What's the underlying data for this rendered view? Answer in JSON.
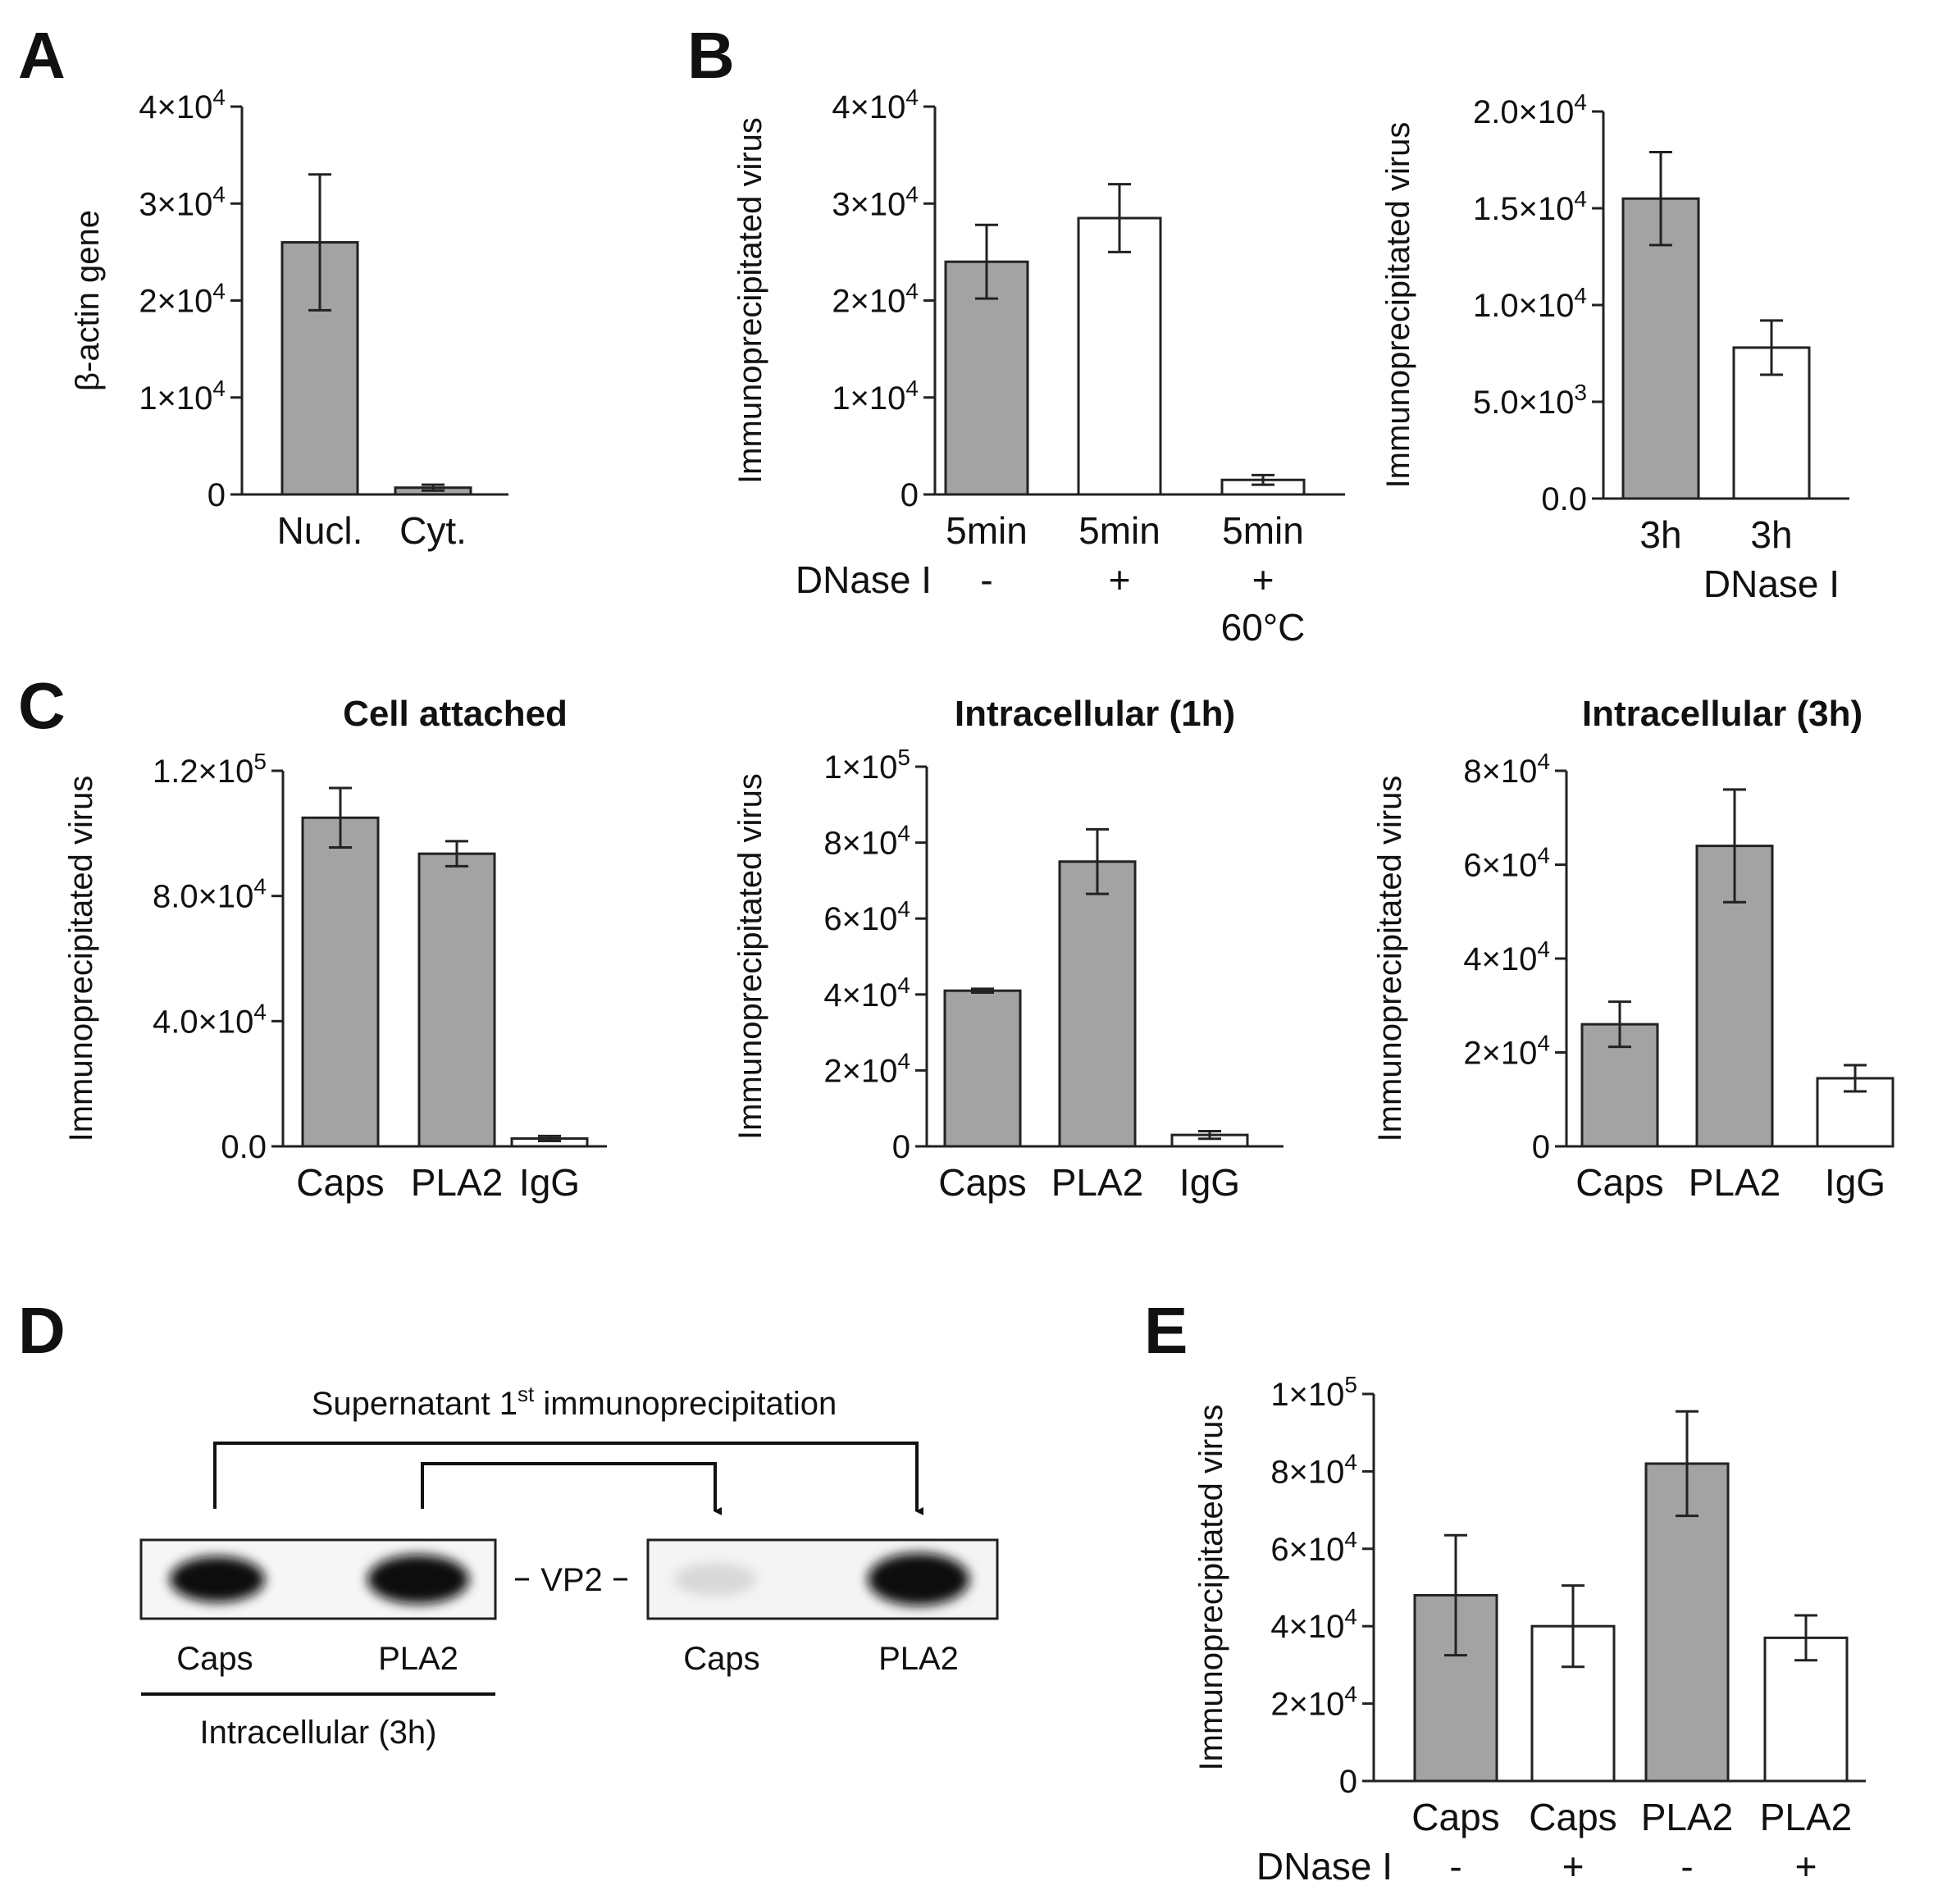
{
  "panels": {
    "A": {
      "letter": "A"
    },
    "B": {
      "letter": "B"
    },
    "C": {
      "letter": "C"
    },
    "D": {
      "letter": "D"
    },
    "E": {
      "letter": "E"
    }
  },
  "colors": {
    "gray_bar": "#a3a3a3",
    "white_bar": "#ffffff",
    "ink": "#222222"
  },
  "chart_data": [
    {
      "id": "A",
      "type": "bar",
      "title": "",
      "ylabel": "β-actin gene",
      "ylim": [
        0,
        40000
      ],
      "yticks": [
        {
          "v": 0,
          "label": "0"
        },
        {
          "v": 10000,
          "label": "1×10^4"
        },
        {
          "v": 20000,
          "label": "2×10^4"
        },
        {
          "v": 30000,
          "label": "3×10^4"
        },
        {
          "v": 40000,
          "label": "4×10^4"
        }
      ],
      "categories": [
        "Nucl.",
        "Cyt."
      ],
      "values": [
        26000,
        700
      ],
      "errors": [
        7000,
        300
      ],
      "fills": [
        "gray",
        "gray"
      ],
      "extra_rows": []
    },
    {
      "id": "B1",
      "type": "bar",
      "title": "",
      "ylabel": "Immunoprecipitated virus",
      "ylim": [
        0,
        40000
      ],
      "yticks": [
        {
          "v": 0,
          "label": "0"
        },
        {
          "v": 10000,
          "label": "1×10^4"
        },
        {
          "v": 20000,
          "label": "2×10^4"
        },
        {
          "v": 30000,
          "label": "3×10^4"
        },
        {
          "v": 40000,
          "label": "4×10^4"
        }
      ],
      "categories": [
        "5min",
        "5min",
        "5min"
      ],
      "values": [
        24000,
        28500,
        1500
      ],
      "errors": [
        3800,
        3500,
        500
      ],
      "fills": [
        "gray",
        "white",
        "white"
      ],
      "extra_rows": [
        {
          "label": "DNase I",
          "values": [
            "-",
            "+",
            "+"
          ]
        },
        {
          "label": "",
          "values": [
            "",
            "",
            "60°C"
          ]
        }
      ]
    },
    {
      "id": "B2",
      "type": "bar",
      "title": "",
      "ylabel": "Immunoprecipitated virus",
      "ylim": [
        0,
        20000
      ],
      "yticks": [
        {
          "v": 0,
          "label": "0.0"
        },
        {
          "v": 5000,
          "label": "5.0×10^3"
        },
        {
          "v": 10000,
          "label": "1.0×10^4"
        },
        {
          "v": 15000,
          "label": "1.5×10^4"
        },
        {
          "v": 20000,
          "label": "2.0×10^4"
        }
      ],
      "categories": [
        "3h",
        "3h"
      ],
      "values": [
        15500,
        7800
      ],
      "errors": [
        2400,
        1400
      ],
      "fills": [
        "gray",
        "white"
      ],
      "extra_rows": [
        {
          "label": "",
          "values": [
            "",
            "DNase I"
          ]
        }
      ]
    },
    {
      "id": "C1",
      "type": "bar",
      "title": "Cell attached",
      "ylabel": "Immunoprecipitated virus",
      "ylim": [
        0,
        120000
      ],
      "yticks": [
        {
          "v": 0,
          "label": "0.0"
        },
        {
          "v": 40000,
          "label": "4.0×10^4"
        },
        {
          "v": 80000,
          "label": "8.0×10^4"
        },
        {
          "v": 120000,
          "label": "1.2×10^5"
        }
      ],
      "categories": [
        "Caps",
        "PLA2",
        "IgG"
      ],
      "values": [
        105000,
        93500,
        2500
      ],
      "errors": [
        9500,
        4000,
        800
      ],
      "fills": [
        "gray",
        "gray",
        "white"
      ],
      "extra_rows": []
    },
    {
      "id": "C2",
      "type": "bar",
      "title": "Intracellular (1h)",
      "ylabel": "Immunoprecipitated virus",
      "ylim": [
        0,
        100000
      ],
      "yticks": [
        {
          "v": 0,
          "label": "0"
        },
        {
          "v": 20000,
          "label": "2×10^4"
        },
        {
          "v": 40000,
          "label": "4×10^4"
        },
        {
          "v": 60000,
          "label": "6×10^4"
        },
        {
          "v": 80000,
          "label": "8×10^4"
        },
        {
          "v": 100000,
          "label": "1×10^5"
        }
      ],
      "categories": [
        "Caps",
        "PLA2",
        "IgG"
      ],
      "values": [
        41000,
        75000,
        3000
      ],
      "errors": [
        500,
        8500,
        1000
      ],
      "fills": [
        "gray",
        "gray",
        "white"
      ],
      "extra_rows": []
    },
    {
      "id": "C3",
      "type": "bar",
      "title": "Intracellular (3h)",
      "ylabel": "Immunoprecipitated virus",
      "ylim": [
        0,
        80000
      ],
      "yticks": [
        {
          "v": 0,
          "label": "0"
        },
        {
          "v": 20000,
          "label": "2×10^4"
        },
        {
          "v": 40000,
          "label": "4×10^4"
        },
        {
          "v": 60000,
          "label": "6×10^4"
        },
        {
          "v": 80000,
          "label": "8×10^4"
        }
      ],
      "categories": [
        "Caps",
        "PLA2",
        "IgG"
      ],
      "values": [
        26000,
        64000,
        14500
      ],
      "errors": [
        4800,
        12000,
        2800
      ],
      "fills": [
        "gray",
        "gray",
        "white"
      ],
      "extra_rows": []
    },
    {
      "id": "E",
      "type": "bar",
      "title": "",
      "ylabel": "Immunoprecipitated virus",
      "ylim": [
        0,
        100000
      ],
      "yticks": [
        {
          "v": 0,
          "label": "0"
        },
        {
          "v": 20000,
          "label": "2×10^4"
        },
        {
          "v": 40000,
          "label": "4×10^4"
        },
        {
          "v": 60000,
          "label": "6×10^4"
        },
        {
          "v": 80000,
          "label": "8×10^4"
        },
        {
          "v": 100000,
          "label": "1×10^5"
        }
      ],
      "categories": [
        "Caps",
        "Caps",
        "PLA2",
        "PLA2"
      ],
      "values": [
        48000,
        40000,
        82000,
        37000
      ],
      "errors": [
        15500,
        10500,
        13500,
        5800
      ],
      "fills": [
        "gray",
        "white",
        "gray",
        "white"
      ],
      "extra_rows": [
        {
          "label": "DNase I",
          "values": [
            "-",
            "+",
            "-",
            "+"
          ]
        }
      ]
    }
  ],
  "blot": {
    "title_main": "Supernatant 1",
    "title_sup": "st",
    "title_rest": " immunoprecipitation",
    "band_label": "VP2",
    "left_lanes": [
      "Caps",
      "PLA2"
    ],
    "right_lanes": [
      "Caps",
      "PLA2"
    ],
    "left_group_label": "Intracellular (3h)"
  }
}
